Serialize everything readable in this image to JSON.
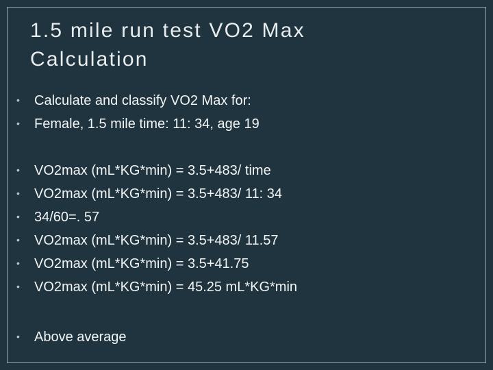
{
  "slide": {
    "title_line1": "1.5 mile run test VO2 Max",
    "title_line2": "Calculation",
    "bullet_glyph": "•",
    "bullets": [
      "Calculate and classify VO2 Max for:",
      "Female, 1.5 mile time: 11: 34, age 19",
      "VO2max (mL*KG*min) = 3.5+483/ time",
      "VO2max (mL*KG*min) = 3.5+483/ 11: 34",
      "34/60=. 57",
      "VO2max (mL*KG*min) = 3.5+483/ 11.57",
      "VO2max (mL*KG*min) = 3.5+41.75",
      "VO2max (mL*KG*min) = 45.25 mL*KG*min",
      "Above average"
    ],
    "colors": {
      "background": "#1f343e",
      "text": "#f2f4f5",
      "frame": "#9aa6ab"
    }
  }
}
